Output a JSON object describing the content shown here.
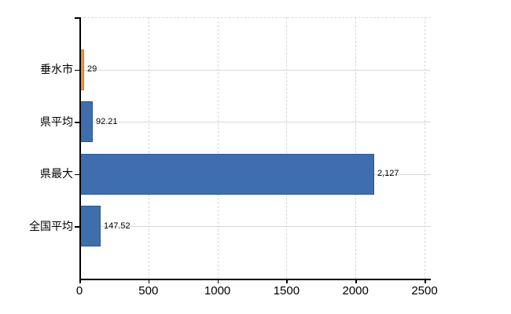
{
  "chart_data": {
    "type": "bar",
    "orientation": "horizontal",
    "title": "",
    "xlabel": "",
    "ylabel": "",
    "categories": [
      "垂水市",
      "県平均",
      "県最大",
      "全国平均"
    ],
    "values": [
      29,
      92.21,
      2127,
      147.52
    ],
    "value_labels": [
      "29",
      "92.21",
      "2,127",
      "147.52"
    ],
    "bar_colors": [
      "#f0953c",
      "#3f6eae",
      "#3f6eae",
      "#3f6eae"
    ],
    "bar_border_colors": [
      "#db7817",
      "#2b5795",
      "#2b5795",
      "#2b5795"
    ],
    "x_tick_labels": [
      "0",
      "500",
      "1000",
      "1500",
      "2000",
      "2500"
    ],
    "x_tick_values": [
      0,
      500,
      1000,
      1500,
      2000,
      2500
    ],
    "xlim": [
      0,
      2500
    ],
    "grid": "on",
    "legend": "none",
    "colors": {
      "gridline": "#d6dad6",
      "axis": "#000000",
      "text": "#000000",
      "background": "#ffffff"
    }
  }
}
